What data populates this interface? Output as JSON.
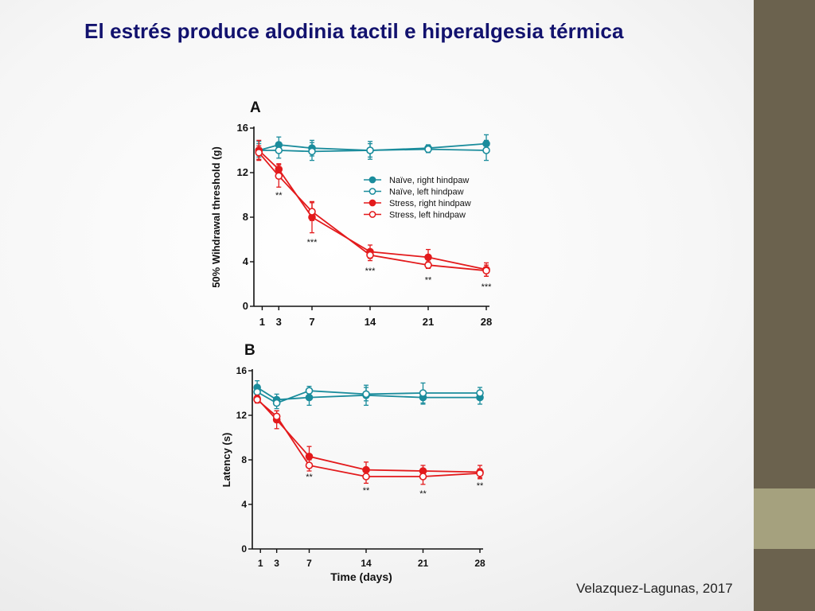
{
  "slide": {
    "title": "El estrés produce alodinia tactil e hiperalgesia térmica",
    "citation": "Velazquez-Lagunas, 2017"
  },
  "colors": {
    "naive": "#1a8c9c",
    "stress": "#e31a1c",
    "sidebar": "#6b624e",
    "sidebar_accent": "#a5a17e",
    "title": "#12126e"
  },
  "chart_data": [
    {
      "type": "line",
      "panel_label": "A",
      "xlabel": "",
      "ylabel": "50% Wihdrawal threshold (g)",
      "x_ticks": [
        "1",
        "3",
        "7",
        "14",
        "21",
        "28"
      ],
      "y_ticks": [
        "0",
        "4",
        "8",
        "12",
        "16"
      ],
      "ylim": [
        0,
        16
      ],
      "legend": [
        "Naïve, right hindpaw",
        "Naïve, left hindpaw",
        "Stress, right hindpaw",
        "Stress, left hindpaw"
      ],
      "series": [
        {
          "name": "Naïve, right hindpaw",
          "color": "#1a8c9c",
          "filled": true,
          "x": [
            0,
            3,
            7,
            14,
            21,
            28
          ],
          "y": [
            14.0,
            14.5,
            14.2,
            14.0,
            14.2,
            14.6
          ],
          "err": [
            0.8,
            0.7,
            0.7,
            0.8,
            0.3,
            0.8
          ]
        },
        {
          "name": "Naïve, left hindpaw",
          "color": "#1a8c9c",
          "filled": false,
          "x": [
            0,
            3,
            7,
            14,
            21,
            28
          ],
          "y": [
            14.0,
            14.0,
            13.9,
            14.0,
            14.1,
            14.0
          ],
          "err": [
            0.6,
            0.7,
            0.8,
            0.6,
            0.3,
            0.9
          ]
        },
        {
          "name": "Stress, right hindpaw",
          "color": "#e31a1c",
          "filled": true,
          "x": [
            0,
            3,
            7,
            14,
            21,
            28
          ],
          "y": [
            14.0,
            12.3,
            8.0,
            4.9,
            4.4,
            3.3
          ],
          "err": [
            0.9,
            0.5,
            1.4,
            0.6,
            0.7,
            0.6
          ]
        },
        {
          "name": "Stress, left hindpaw",
          "color": "#e31a1c",
          "filled": false,
          "x": [
            0,
            3,
            7,
            14,
            21,
            28
          ],
          "y": [
            13.8,
            11.7,
            8.5,
            4.6,
            3.7,
            3.2
          ],
          "err": [
            0.6,
            1.0,
            0.8,
            0.5,
            0.3,
            0.5
          ]
        }
      ],
      "annotations": [
        {
          "text": "**",
          "x": 3,
          "y": 10.0
        },
        {
          "text": "***",
          "x": 7,
          "y": 5.8
        },
        {
          "text": "***",
          "x": 14,
          "y": 3.2
        },
        {
          "text": "**",
          "x": 21,
          "y": 2.4
        },
        {
          "text": "***",
          "x": 28,
          "y": 1.8
        }
      ]
    },
    {
      "type": "line",
      "panel_label": "B",
      "xlabel": "Time (days)",
      "ylabel": "Latency (s)",
      "x_ticks": [
        "1",
        "3",
        "7",
        "14",
        "21",
        "28"
      ],
      "y_ticks": [
        "0",
        "4",
        "8",
        "12",
        "16"
      ],
      "ylim": [
        0,
        16
      ],
      "series": [
        {
          "name": "Naïve, right hindpaw",
          "color": "#1a8c9c",
          "filled": true,
          "x": [
            0,
            3,
            7,
            14,
            21,
            28
          ],
          "y": [
            14.5,
            13.4,
            13.6,
            13.8,
            13.6,
            13.6
          ],
          "err": [
            0.6,
            0.5,
            0.7,
            0.9,
            0.6,
            0.6
          ]
        },
        {
          "name": "Naïve, left hindpaw",
          "color": "#1a8c9c",
          "filled": false,
          "x": [
            0,
            3,
            7,
            14,
            21,
            28
          ],
          "y": [
            14.1,
            13.1,
            14.2,
            13.9,
            14.0,
            14.0
          ],
          "err": [
            0.5,
            0.5,
            0.4,
            0.6,
            0.9,
            0.5
          ]
        },
        {
          "name": "Stress, right hindpaw",
          "color": "#e31a1c",
          "filled": true,
          "x": [
            0,
            3,
            7,
            14,
            21,
            28
          ],
          "y": [
            13.5,
            11.6,
            8.3,
            7.1,
            7.0,
            6.9
          ],
          "err": [
            0.3,
            0.8,
            0.9,
            0.7,
            0.5,
            0.6
          ]
        },
        {
          "name": "Stress, left hindpaw",
          "color": "#e31a1c",
          "filled": false,
          "x": [
            0,
            3,
            7,
            14,
            21,
            28
          ],
          "y": [
            13.4,
            11.9,
            7.5,
            6.5,
            6.5,
            6.8
          ],
          "err": [
            0.3,
            0.5,
            0.5,
            0.6,
            0.7,
            0.4
          ]
        }
      ],
      "annotations": [
        {
          "text": "**",
          "x": 7,
          "y": 6.5
        },
        {
          "text": "**",
          "x": 14,
          "y": 5.3
        },
        {
          "text": "**",
          "x": 21,
          "y": 5.0
        },
        {
          "text": "**",
          "x": 28,
          "y": 5.7
        }
      ]
    }
  ]
}
